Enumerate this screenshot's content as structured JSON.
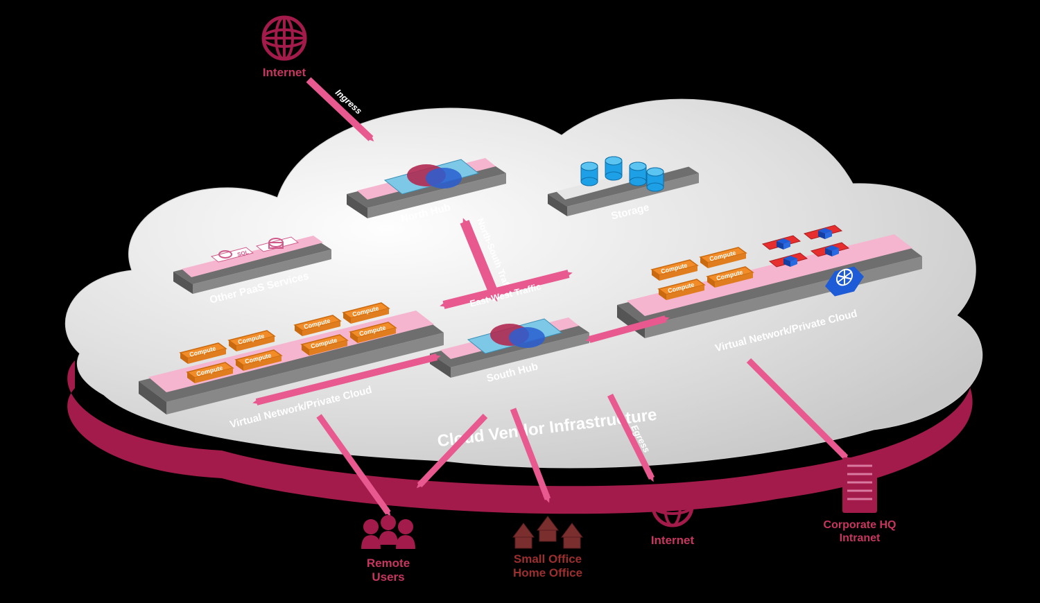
{
  "title": "Cloud Vendor Infrastructure",
  "colors": {
    "cloud_top": "#e8e8e8",
    "cloud_top_light": "#f8f8f8",
    "cloud_side": "#a31b4a",
    "platform_top": "#f5b5cf",
    "platform_side": "#e37aa8",
    "platform_base": "#b0b0b0",
    "platform_base_side": "#6e6e6e",
    "compute_fill": "#f28c28",
    "compute_stroke": "#c96a10",
    "container_fill": "#e62e2e",
    "container_cube": "#1e5bd6",
    "k8s_fill": "#1e5bd6",
    "hub_bg": "#7cc8e6",
    "hub_circle1": "#b02a52",
    "hub_circle2": "#2a5fd0",
    "storage_cyl": "#1ea0e6",
    "paas_icon": "#d05a8a",
    "arrow": "#e85a8f",
    "arrow_dark": "#c0395f",
    "text_main": "#ffffff",
    "text_ext_pink": "#c7365f",
    "text_ext_red": "#9c2e2e",
    "globe": "#a31b4a",
    "user": "#a31b4a",
    "house": "#7a2e2e",
    "server": "#a31b4a"
  },
  "labels": {
    "internet_top": "Internet",
    "ingress": "Ingress",
    "north_hub": "North Hub",
    "south_hub": "South Hub",
    "storage": "Storage",
    "paas": "Other PaaS Services",
    "vnet_left": "Virtual Network/Private Cloud",
    "vnet_right": "Virtual Network/Private Cloud",
    "ns_traffic": "North-South Traffic",
    "ew_traffic": "East-West Traffic",
    "cloud_vendor": "Cloud Vendor Infrastructure",
    "egress": "Egress",
    "remote_users": "Remote\nUsers",
    "soho": "Small Office\nHome Office",
    "internet_bottom": "Internet",
    "corp_hq": "Corporate HQ\nIntranet",
    "compute": "Compute",
    "sql": "SQL"
  },
  "fonts": {
    "main_title": 24,
    "block_label": 15,
    "traffic_label": 14,
    "ext_label": 17,
    "compute": 9
  },
  "iso": {
    "skew_deg": -15,
    "shear": 0.27
  }
}
